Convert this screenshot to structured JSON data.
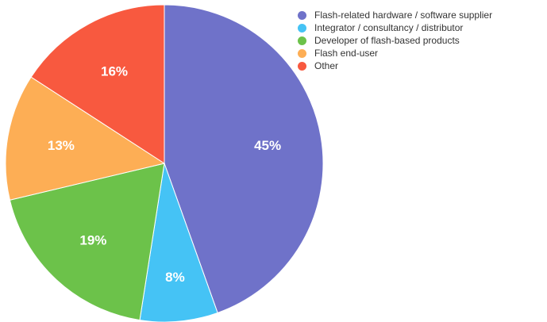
{
  "chart_data": {
    "type": "pie",
    "title": "",
    "legend_position": "top-right",
    "slices": [
      {
        "name": "Flash-related hardware / software supplier",
        "value": 45,
        "label": "45%",
        "color": "#6f72c9"
      },
      {
        "name": "Integrator / consultancy / distributor",
        "value": 8,
        "label": "8%",
        "color": "#45c3f5"
      },
      {
        "name": "Developer of flash-based products",
        "value": 19,
        "label": "19%",
        "color": "#6cc24a"
      },
      {
        "name": "Flash end-user",
        "value": 13,
        "label": "13%",
        "color": "#fdae55"
      },
      {
        "name": "Other",
        "value": 16,
        "label": "16%",
        "color": "#f8593f"
      }
    ]
  }
}
